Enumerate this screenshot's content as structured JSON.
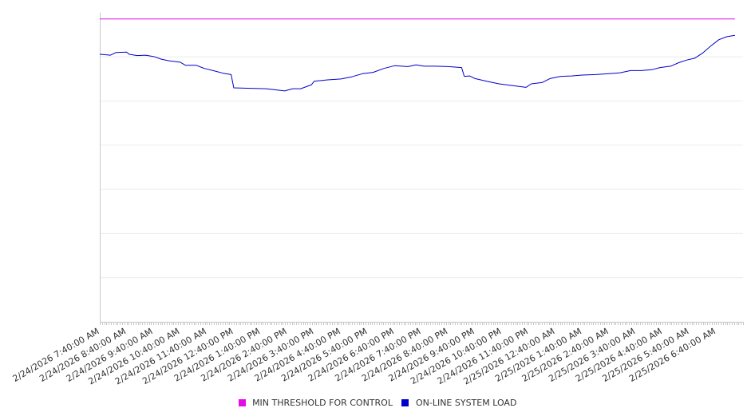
{
  "chart_data": {
    "type": "line",
    "title": "",
    "xlabel": "",
    "ylabel": "",
    "grid": true,
    "legend_position": "bottom",
    "y_tick_labels_visible": false,
    "x_tick_labels": [
      "2/24/2026 7:40:00 AM",
      "2/24/2026 8:40:00 AM",
      "2/24/2026 9:40:00 AM",
      "2/24/2026 10:40:00 AM",
      "2/24/2026 11:40:00 AM",
      "2/24/2026 12:40:00 PM",
      "2/24/2026 1:40:00 PM",
      "2/24/2026 2:40:00 PM",
      "2/24/2026 3:40:00 PM",
      "2/24/2026 4:40:00 PM",
      "2/24/2026 5:40:00 PM",
      "2/24/2026 6:40:00 PM",
      "2/24/2026 7:40:00 PM",
      "2/24/2026 8:40:00 PM",
      "2/24/2026 9:40:00 PM",
      "2/24/2026 10:40:00 PM",
      "2/24/2026 11:40:00 PM",
      "2/25/2026 12:40:00 AM",
      "2/25/2026 1:40:00 AM",
      "2/25/2026 2:40:00 AM",
      "2/25/2026 3:40:00 AM",
      "2/25/2026 4:40:00 AM",
      "2/25/2026 5:40:00 AM",
      "2/25/2026 6:40:00 AM"
    ],
    "ylim": [
      0,
      7
    ],
    "series": [
      {
        "name": "MIN THRESHOLD FOR CONTROL",
        "color": "#e60ce6",
        "points": [
          [
            0,
            6.86
          ],
          [
            23.7,
            6.86
          ]
        ]
      },
      {
        "name": "ON-LINE SYSTEM LOAD",
        "color": "#0000cc",
        "points": [
          [
            0.0,
            6.06
          ],
          [
            0.4,
            6.04
          ],
          [
            0.6,
            6.1
          ],
          [
            1.0,
            6.11
          ],
          [
            1.1,
            6.06
          ],
          [
            1.4,
            6.03
          ],
          [
            1.7,
            6.04
          ],
          [
            2.0,
            6.01
          ],
          [
            2.3,
            5.95
          ],
          [
            2.6,
            5.91
          ],
          [
            3.0,
            5.88
          ],
          [
            3.2,
            5.81
          ],
          [
            3.6,
            5.81
          ],
          [
            3.9,
            5.74
          ],
          [
            4.3,
            5.68
          ],
          [
            4.6,
            5.63
          ],
          [
            4.9,
            5.6
          ],
          [
            5.0,
            5.3
          ],
          [
            5.5,
            5.29
          ],
          [
            6.2,
            5.28
          ],
          [
            6.5,
            5.26
          ],
          [
            6.9,
            5.23
          ],
          [
            7.2,
            5.28
          ],
          [
            7.5,
            5.28
          ],
          [
            7.9,
            5.37
          ],
          [
            8.0,
            5.45
          ],
          [
            8.5,
            5.48
          ],
          [
            9.0,
            5.5
          ],
          [
            9.4,
            5.55
          ],
          [
            9.8,
            5.62
          ],
          [
            10.2,
            5.65
          ],
          [
            10.6,
            5.74
          ],
          [
            11.0,
            5.8
          ],
          [
            11.5,
            5.78
          ],
          [
            11.8,
            5.82
          ],
          [
            12.1,
            5.79
          ],
          [
            12.5,
            5.79
          ],
          [
            13.0,
            5.78
          ],
          [
            13.5,
            5.76
          ],
          [
            13.6,
            5.56
          ],
          [
            13.8,
            5.57
          ],
          [
            14.0,
            5.51
          ],
          [
            14.5,
            5.44
          ],
          [
            14.9,
            5.39
          ],
          [
            15.3,
            5.36
          ],
          [
            15.9,
            5.31
          ],
          [
            16.1,
            5.39
          ],
          [
            16.5,
            5.42
          ],
          [
            16.8,
            5.51
          ],
          [
            17.2,
            5.56
          ],
          [
            17.6,
            5.57
          ],
          [
            18.0,
            5.59
          ],
          [
            18.5,
            5.6
          ],
          [
            19.0,
            5.62
          ],
          [
            19.4,
            5.64
          ],
          [
            19.8,
            5.69
          ],
          [
            20.2,
            5.69
          ],
          [
            20.6,
            5.71
          ],
          [
            20.9,
            5.76
          ],
          [
            21.3,
            5.79
          ],
          [
            21.6,
            5.87
          ],
          [
            21.9,
            5.93
          ],
          [
            22.2,
            5.97
          ],
          [
            22.5,
            6.09
          ],
          [
            22.8,
            6.25
          ],
          [
            23.1,
            6.39
          ],
          [
            23.4,
            6.46
          ],
          [
            23.7,
            6.49
          ]
        ]
      }
    ]
  }
}
